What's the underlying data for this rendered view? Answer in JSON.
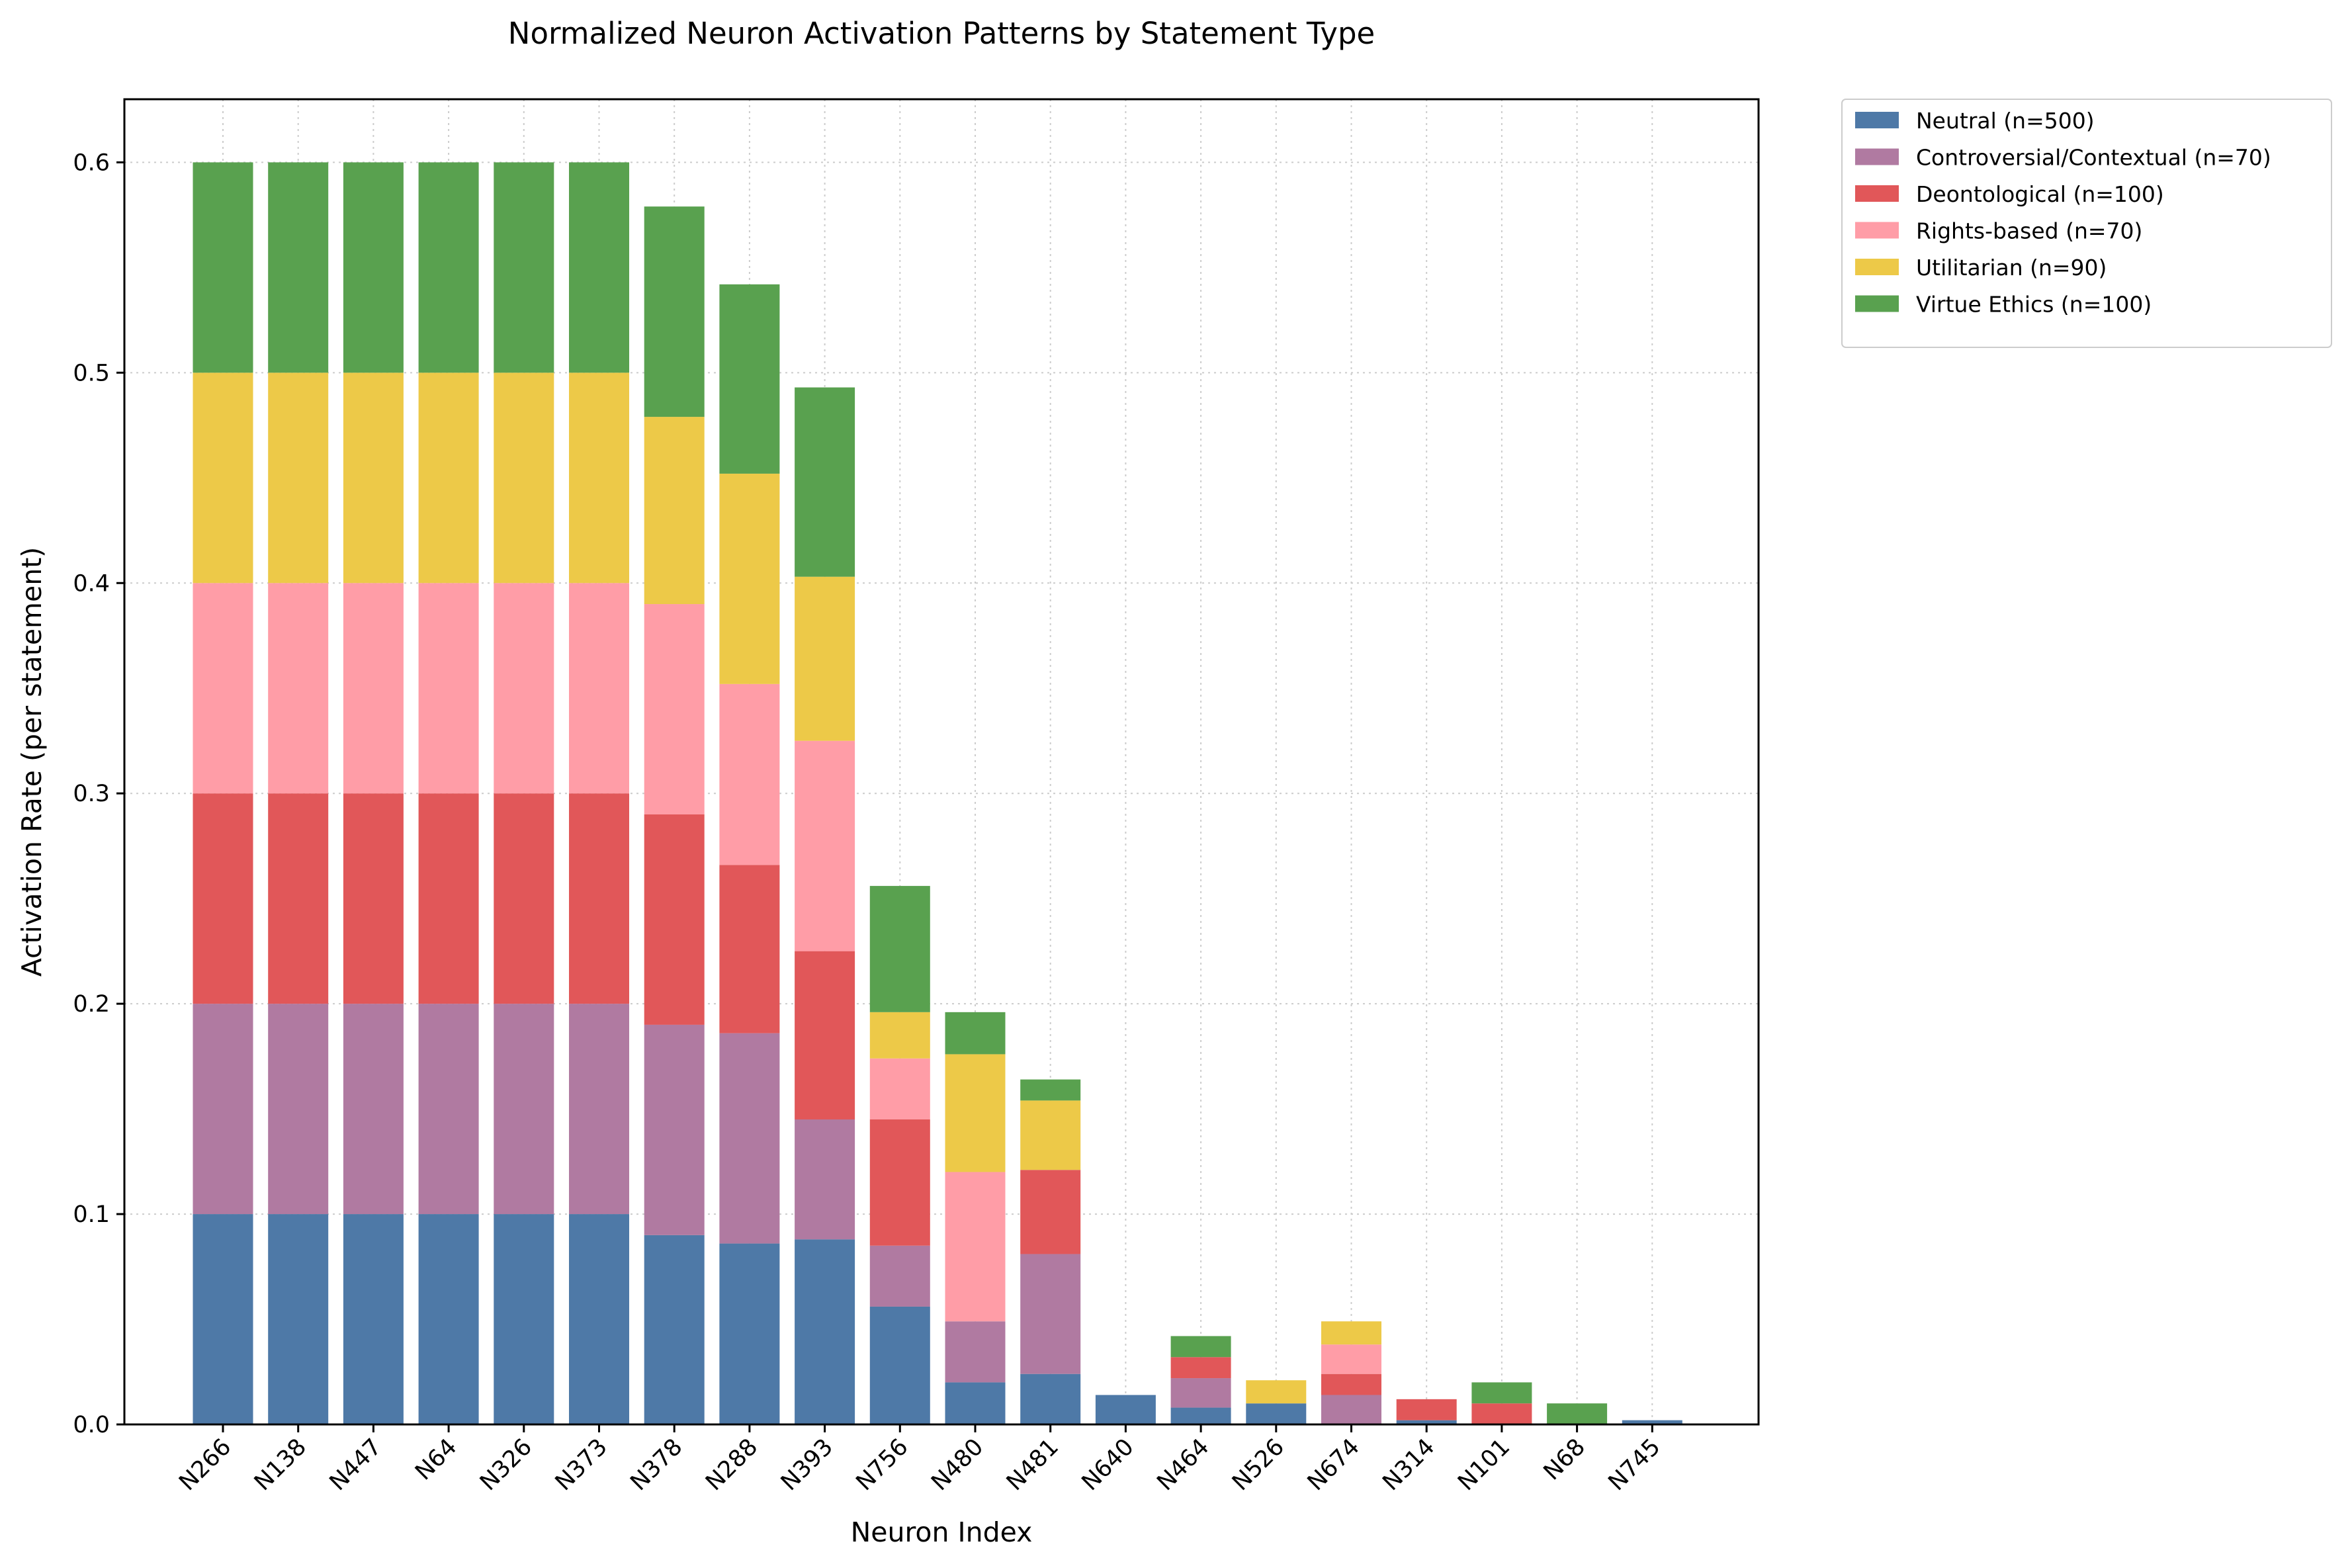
{
  "chart_data": {
    "type": "bar",
    "stacked": true,
    "title": "Normalized Neuron Activation Patterns by Statement Type",
    "xlabel": "Neuron Index",
    "ylabel": "Activation Rate (per statement)",
    "ylim": [
      0,
      0.63
    ],
    "yticks": [
      0.0,
      0.1,
      0.2,
      0.3,
      0.4,
      0.5,
      0.6
    ],
    "ytick_labels": [
      "0.0",
      "0.1",
      "0.2",
      "0.3",
      "0.4",
      "0.5",
      "0.6"
    ],
    "grid": true,
    "legend_position": "outside-top-right",
    "categories": [
      "N266",
      "N138",
      "N447",
      "N64",
      "N326",
      "N373",
      "N378",
      "N288",
      "N393",
      "N756",
      "N480",
      "N481",
      "N640",
      "N464",
      "N526",
      "N674",
      "N314",
      "N101",
      "N68",
      "N745"
    ],
    "series": [
      {
        "name": "Neutral (n=500)",
        "color": "#4e79a7",
        "values": [
          0.1,
          0.1,
          0.1,
          0.1,
          0.1,
          0.1,
          0.09,
          0.086,
          0.088,
          0.056,
          0.02,
          0.024,
          0.014,
          0.008,
          0.01,
          0,
          0.002,
          0,
          0,
          0.002
        ]
      },
      {
        "name": "Controversial/Contextual (n=70)",
        "color": "#b07aa1",
        "values": [
          0.1,
          0.1,
          0.1,
          0.1,
          0.1,
          0.1,
          0.1,
          0.1,
          0.057,
          0.029,
          0.029,
          0.057,
          0,
          0.014,
          0,
          0.014,
          0,
          0,
          0,
          0
        ]
      },
      {
        "name": "Deontological (n=100)",
        "color": "#e15759",
        "values": [
          0.1,
          0.1,
          0.1,
          0.1,
          0.1,
          0.1,
          0.1,
          0.08,
          0.08,
          0.06,
          0,
          0.04,
          0,
          0.01,
          0,
          0.01,
          0.01,
          0.01,
          0,
          0
        ]
      },
      {
        "name": "Rights-based (n=70)",
        "color": "#ff9da7",
        "values": [
          0.1,
          0.1,
          0.1,
          0.1,
          0.1,
          0.1,
          0.1,
          0.086,
          0.1,
          0.029,
          0.071,
          0,
          0,
          0,
          0,
          0.014,
          0,
          0,
          0,
          0
        ]
      },
      {
        "name": "Utilitarian (n=90)",
        "color": "#edc948",
        "values": [
          0.1,
          0.1,
          0.1,
          0.1,
          0.1,
          0.1,
          0.089,
          0.1,
          0.078,
          0.022,
          0.056,
          0.033,
          0,
          0,
          0.011,
          0.011,
          0,
          0,
          0,
          0
        ]
      },
      {
        "name": "Virtue Ethics (n=100)",
        "color": "#59a14f",
        "values": [
          0.1,
          0.1,
          0.1,
          0.1,
          0.1,
          0.1,
          0.1,
          0.09,
          0.09,
          0.06,
          0.02,
          0.01,
          0,
          0.01,
          0,
          0,
          0,
          0.01,
          0.01,
          0
        ]
      }
    ]
  }
}
